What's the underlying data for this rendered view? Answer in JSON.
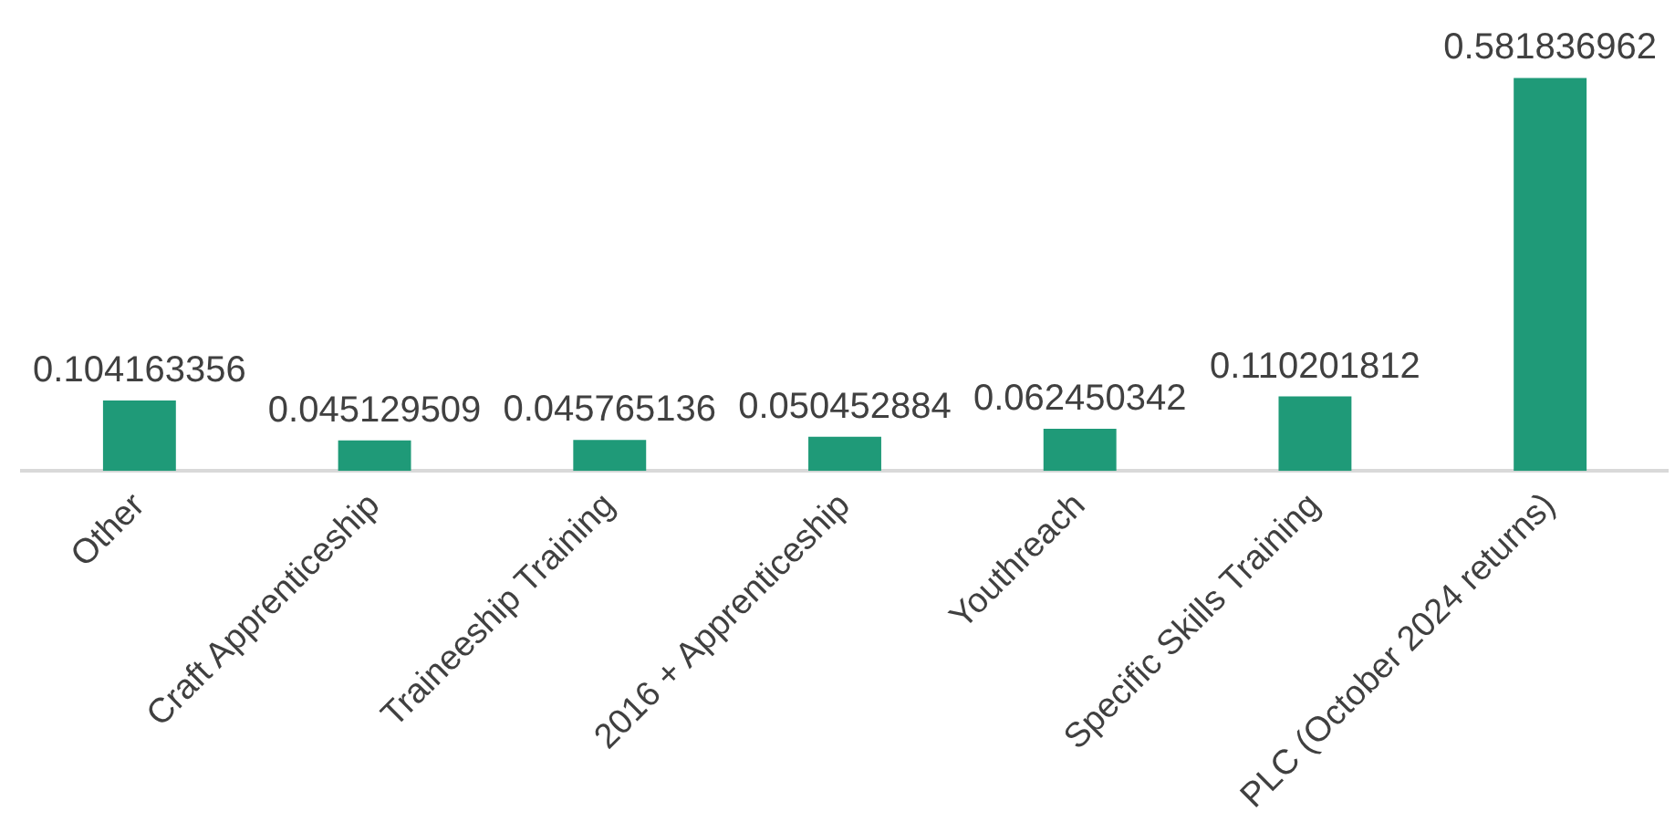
{
  "chart_data": {
    "type": "bar",
    "categories": [
      "Other",
      "Craft Apprenticeship",
      "Traineeship Training",
      "2016 + Apprenticeship",
      "Youthreach",
      "Specific Skills Training",
      "PLC (October 2024 returns)"
    ],
    "values": [
      0.104163356,
      0.045129509,
      0.045765136,
      0.050452884,
      0.062450342,
      0.110201812,
      0.581836962
    ],
    "color": "#1f9a78",
    "data_labels": true,
    "tick_labels": "x",
    "grid": false,
    "legend": false
  }
}
